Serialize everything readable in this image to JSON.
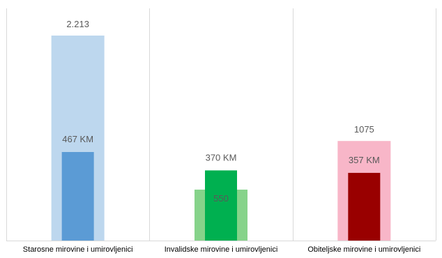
{
  "chart_data": {
    "type": "bar",
    "categories": [
      "Starosne mirovine i umirovljenici",
      "Invalidske mirovine i umirovljenici",
      "Obiteljske mirovine i umirovljenici"
    ],
    "series": [
      {
        "values": [
          2213,
          550,
          1075
        ],
        "labels": [
          "2.213",
          "550",
          "1075"
        ],
        "colors": [
          "#bdd7ee",
          "#86d38a",
          "#f8b6c8"
        ]
      },
      {
        "values": [
          467,
          370,
          357
        ],
        "labels": [
          "467 KM",
          "370 KM",
          "357 KM"
        ],
        "colors": [
          "#5b9bd5",
          "#00b050",
          "#990000"
        ]
      }
    ],
    "grid_vertical_separators": true,
    "legend": "none",
    "title": "",
    "xlabel": "",
    "ylabel": ""
  }
}
